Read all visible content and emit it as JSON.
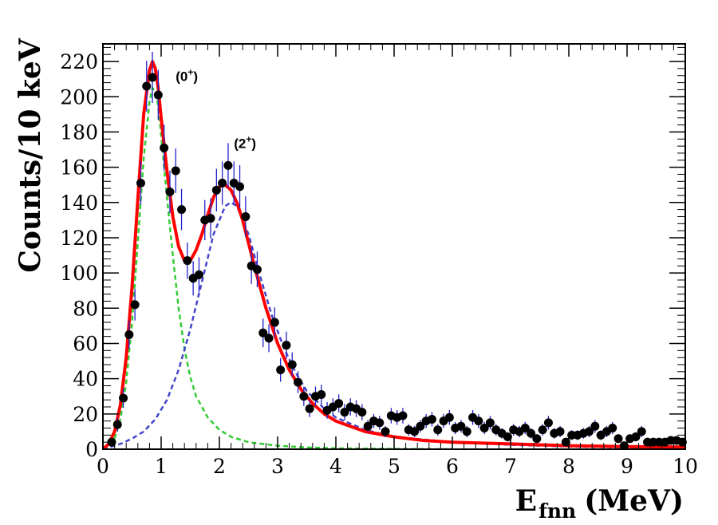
{
  "chart_data": {
    "type": "scatter",
    "title": "",
    "xlabel": {
      "main": "E",
      "sub": "fnn",
      "unit": "(MeV)"
    },
    "ylabel": "Counts/10 keV",
    "xlim": [
      0,
      10
    ],
    "ylim": [
      0,
      230
    ],
    "x_ticks": [
      0,
      1,
      2,
      3,
      4,
      5,
      6,
      7,
      8,
      9,
      10
    ],
    "y_ticks": [
      0,
      20,
      40,
      60,
      80,
      100,
      120,
      140,
      160,
      180,
      200,
      220
    ],
    "grid": false,
    "annotations": [
      {
        "text": "(0",
        "sup": "+",
        "close": ")",
        "x": 1.25,
        "y": 209
      },
      {
        "text": "(2",
        "sup": "+",
        "close": ")",
        "x": 2.25,
        "y": 171
      }
    ],
    "colors": {
      "data": "#000000",
      "error_bars": "#2222cc",
      "total_fit": "#ff0000",
      "peak_0plus": "#33cc33",
      "peak_2plus": "#4444cc"
    },
    "series": [
      {
        "kind": "data",
        "style": "points-with-errorbars",
        "x": [
          0.15,
          0.25,
          0.35,
          0.45,
          0.55,
          0.65,
          0.75,
          0.85,
          0.95,
          1.05,
          1.15,
          1.25,
          1.35,
          1.45,
          1.55,
          1.65,
          1.75,
          1.85,
          1.95,
          2.05,
          2.15,
          2.25,
          2.35,
          2.45,
          2.55,
          2.65,
          2.75,
          2.85,
          2.95,
          3.05,
          3.15,
          3.25,
          3.35,
          3.45,
          3.55,
          3.65,
          3.75,
          3.85,
          3.95,
          4.05,
          4.15,
          4.25,
          4.35,
          4.45,
          4.55,
          4.65,
          4.75,
          4.85,
          4.95,
          5.05,
          5.15,
          5.25,
          5.35,
          5.45,
          5.55,
          5.65,
          5.75,
          5.85,
          5.95,
          6.05,
          6.15,
          6.25,
          6.35,
          6.45,
          6.55,
          6.65,
          6.75,
          6.85,
          6.95,
          7.05,
          7.15,
          7.25,
          7.35,
          7.45,
          7.55,
          7.65,
          7.75,
          7.85,
          7.95,
          8.05,
          8.15,
          8.25,
          8.35,
          8.45,
          8.55,
          8.65,
          8.75,
          8.85,
          8.95,
          9.05,
          9.15,
          9.25,
          9.35,
          9.45,
          9.55,
          9.65,
          9.75,
          9.85,
          9.95
        ],
        "y": [
          4,
          14,
          29,
          65,
          82,
          151,
          206,
          211,
          201,
          171,
          146,
          158,
          136,
          107,
          97,
          99,
          130,
          131,
          147,
          151,
          161,
          151,
          149,
          132,
          104,
          102,
          66,
          63,
          72,
          45,
          59,
          48,
          38,
          30,
          23,
          30,
          31,
          22,
          24,
          26,
          21,
          24,
          23,
          21,
          13,
          16,
          15,
          10,
          19,
          18,
          19,
          11,
          10,
          13,
          16,
          17,
          11,
          16,
          18,
          12,
          13,
          10,
          18,
          16,
          12,
          15,
          11,
          9,
          7,
          11,
          10,
          12,
          9,
          6,
          11,
          15,
          9,
          10,
          4,
          8,
          8,
          9,
          10,
          13,
          8,
          10,
          12,
          6,
          2,
          6,
          7,
          10,
          4,
          4,
          4,
          4,
          5,
          5,
          4
        ],
        "yerr": [
          2,
          4,
          5.5,
          8,
          9,
          12.3,
          14.4,
          14.5,
          14.2,
          13.1,
          12.1,
          12.6,
          11.7,
          10.3,
          9.8,
          9.9,
          11.4,
          11.4,
          12.1,
          12.3,
          12.7,
          12.3,
          12.2,
          11.5,
          10.2,
          10.1,
          8.1,
          7.9,
          8.5,
          6.7,
          7.7,
          6.9,
          6.2,
          5.5,
          4.8,
          5.5,
          5.6,
          4.7,
          4.9,
          5.1,
          4.6,
          4.9,
          4.8,
          4.6,
          3.6,
          4,
          3.9,
          3.2,
          4.4,
          4.2,
          4.4,
          3.3,
          3.2,
          3.6,
          4,
          4.1,
          3.3,
          4,
          4.2,
          3.5,
          3.6,
          3.2,
          4.2,
          4,
          3.5,
          3.9,
          3.3,
          3,
          2.6,
          3.3,
          3.2,
          3.5,
          3,
          2.4,
          3.3,
          3.9,
          3,
          3.2,
          2,
          2.8,
          2.8,
          3,
          3.2,
          3.6,
          2.8,
          3.2,
          3.5,
          2.4,
          1.4,
          2.4,
          2.6,
          3.2,
          2,
          2,
          2,
          2,
          2.2,
          2.2,
          2
        ]
      },
      {
        "kind": "fit-total",
        "style": "solid",
        "x": [
          0,
          0.1,
          0.2,
          0.3,
          0.4,
          0.5,
          0.6,
          0.7,
          0.8,
          0.85,
          0.9,
          0.95,
          1,
          1.1,
          1.2,
          1.3,
          1.4,
          1.5,
          1.6,
          1.7,
          1.8,
          1.9,
          2,
          2.1,
          2.2,
          2.3,
          2.4,
          2.5,
          2.6,
          2.7,
          2.8,
          3,
          3.2,
          3.4,
          3.6,
          3.8,
          4,
          4.5,
          5,
          5.5,
          6,
          7,
          8,
          9,
          10
        ],
        "y": [
          0,
          3,
          10,
          25,
          52,
          92,
          142,
          190,
          215,
          220,
          216,
          205,
          188,
          158,
          132,
          115,
          107,
          107,
          113,
          122,
          133,
          143,
          149,
          150,
          147,
          140,
          130,
          117,
          104,
          92,
          80,
          60,
          45,
          34,
          26,
          20,
          16,
          10,
          7,
          5,
          4,
          3,
          2,
          1.5,
          1.2
        ]
      },
      {
        "kind": "fit-0plus",
        "style": "dashed",
        "x": [
          0,
          0.1,
          0.2,
          0.3,
          0.4,
          0.5,
          0.6,
          0.7,
          0.8,
          0.85,
          0.9,
          0.95,
          1,
          1.1,
          1.2,
          1.3,
          1.4,
          1.5,
          1.6,
          1.8,
          2,
          2.2,
          2.5,
          3,
          3.5,
          4,
          5,
          6
        ],
        "y": [
          0,
          2,
          6,
          17,
          38,
          72,
          118,
          165,
          197,
          205,
          203,
          195,
          178,
          143,
          110,
          80,
          57,
          41,
          30,
          18,
          11,
          7,
          4,
          2,
          1,
          0.5,
          0.2,
          0
        ]
      },
      {
        "kind": "fit-2plus",
        "style": "dashed",
        "x": [
          0,
          0.3,
          0.5,
          0.7,
          0.9,
          1.1,
          1.3,
          1.5,
          1.7,
          1.9,
          2.1,
          2.2,
          2.3,
          2.5,
          2.7,
          2.9,
          3.1,
          3.3,
          3.5,
          3.8,
          4,
          4.5,
          5,
          6,
          7,
          8,
          9,
          10
        ],
        "y": [
          0,
          3,
          6,
          10,
          17,
          28,
          45,
          68,
          95,
          122,
          138,
          140,
          138,
          122,
          98,
          76,
          58,
          44,
          33,
          23,
          18,
          11,
          7,
          4,
          2.5,
          1.5,
          1,
          0.8
        ]
      }
    ]
  }
}
